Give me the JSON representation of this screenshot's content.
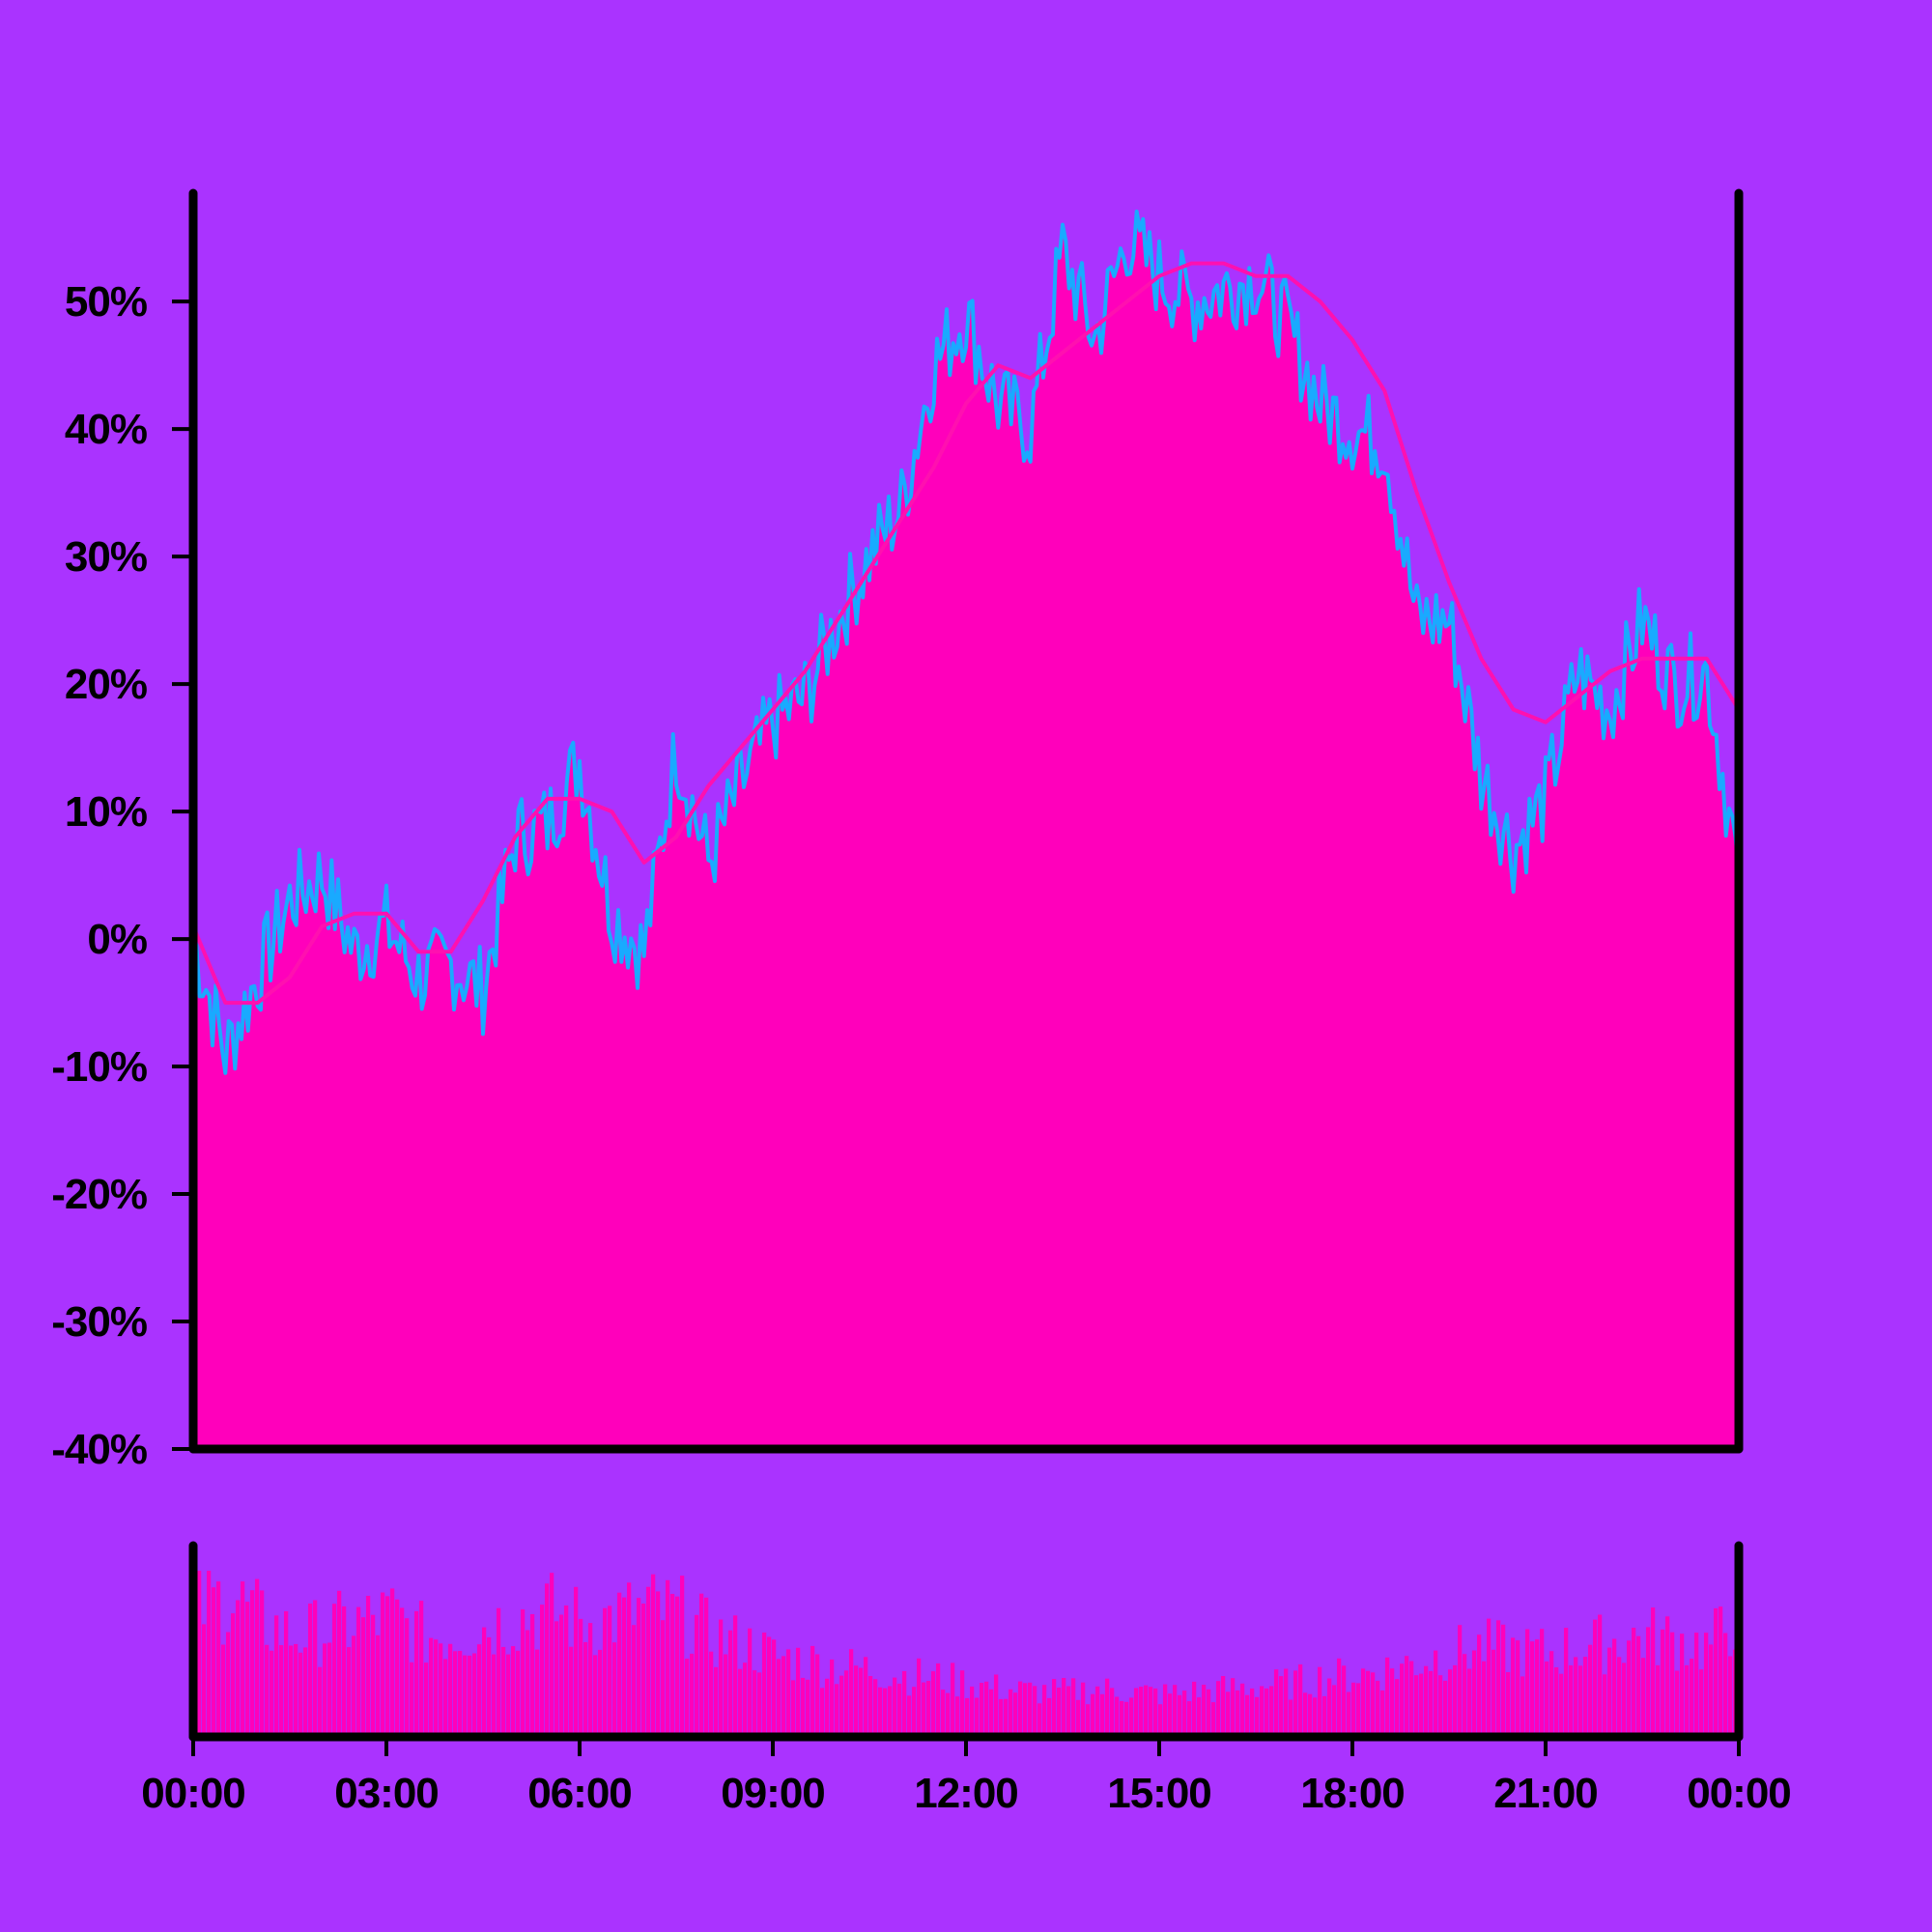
{
  "colors": {
    "background": "#aa33ff",
    "area_fill": "#ff00bb",
    "price_line": "#19aaff",
    "moving_average": "#ff10b0",
    "volume_bars": "#ff00bb",
    "axis": "#000000"
  },
  "chart_data": {
    "type": "area",
    "title": "",
    "xlabel": "",
    "ylabel": "",
    "y_ticks": [
      "50%",
      "40%",
      "30%",
      "20%",
      "10%",
      "0%",
      "-10%",
      "-20%",
      "-30%",
      "-40%"
    ],
    "x_ticks": [
      "00:00",
      "03:00",
      "06:00",
      "09:00",
      "12:00",
      "15:00",
      "18:00",
      "21:00",
      "00:00"
    ],
    "ylim": [
      -40,
      58.5
    ],
    "xlim": [
      "00:00",
      "24:00"
    ],
    "grid": false,
    "legend": "none",
    "panels": [
      "price-percent",
      "volume"
    ],
    "series": [
      {
        "kind": "price",
        "x": [
          "00:00",
          "00:30",
          "01:00",
          "01:30",
          "02:00",
          "02:30",
          "03:00",
          "03:30",
          "04:00",
          "04:30",
          "05:00",
          "05:30",
          "06:00",
          "06:30",
          "07:00",
          "07:30",
          "08:00",
          "08:30",
          "09:00",
          "09:30",
          "10:00",
          "10:30",
          "11:00",
          "11:30",
          "12:00",
          "12:30",
          "13:00",
          "13:30",
          "14:00",
          "14:30",
          "15:00",
          "15:30",
          "16:00",
          "16:30",
          "17:00",
          "17:30",
          "18:00",
          "18:30",
          "19:00",
          "19:30",
          "20:00",
          "20:30",
          "21:00",
          "21:30",
          "22:00",
          "22:30",
          "23:00",
          "23:30",
          "24:00"
        ],
        "values": [
          0,
          -9,
          -3,
          3,
          5,
          -1,
          1,
          -3,
          -2,
          -4,
          8,
          9,
          14,
          2,
          -1,
          15,
          6,
          12,
          17,
          19,
          25,
          30,
          34,
          45,
          49,
          42,
          40,
          54,
          47,
          55,
          52,
          50,
          51,
          52,
          48,
          42,
          40,
          39,
          25,
          25,
          13,
          7,
          11,
          21,
          18,
          25,
          20,
          21,
          5
        ]
      },
      {
        "kind": "moving_average",
        "x": [
          "00:00",
          "00:30",
          "01:00",
          "01:30",
          "02:00",
          "02:30",
          "03:00",
          "03:30",
          "04:00",
          "04:30",
          "05:00",
          "05:30",
          "06:00",
          "06:30",
          "07:00",
          "07:30",
          "08:00",
          "08:30",
          "09:00",
          "09:30",
          "10:00",
          "10:30",
          "11:00",
          "11:30",
          "12:00",
          "12:30",
          "13:00",
          "13:30",
          "14:00",
          "14:30",
          "15:00",
          "15:30",
          "16:00",
          "16:30",
          "17:00",
          "17:30",
          "18:00",
          "18:30",
          "19:00",
          "19:30",
          "20:00",
          "20:30",
          "21:00",
          "21:30",
          "22:00",
          "22:30",
          "23:00",
          "23:30",
          "24:00"
        ],
        "values": [
          1,
          -5,
          -5,
          -3,
          1,
          2,
          2,
          -1,
          -1,
          3,
          8,
          11,
          11,
          10,
          6,
          8,
          12,
          15,
          18,
          21,
          25,
          29,
          33,
          37,
          42,
          45,
          44,
          46,
          48,
          50,
          52,
          53,
          53,
          52,
          52,
          50,
          47,
          43,
          35,
          28,
          22,
          18,
          17,
          19,
          21,
          22,
          22,
          22,
          18
        ]
      }
    ],
    "volume": [
      90,
      100,
      80,
      70,
      75,
      80,
      85,
      70,
      72,
      78,
      84,
      88,
      80,
      84,
      90,
      86,
      70,
      64,
      55,
      52,
      48,
      46,
      42,
      40,
      36,
      32,
      30,
      30,
      32,
      30,
      28,
      30,
      32,
      34,
      36,
      40,
      42,
      46,
      52,
      58,
      62,
      60,
      58,
      62,
      66,
      70,
      68,
      62,
      88
    ]
  }
}
